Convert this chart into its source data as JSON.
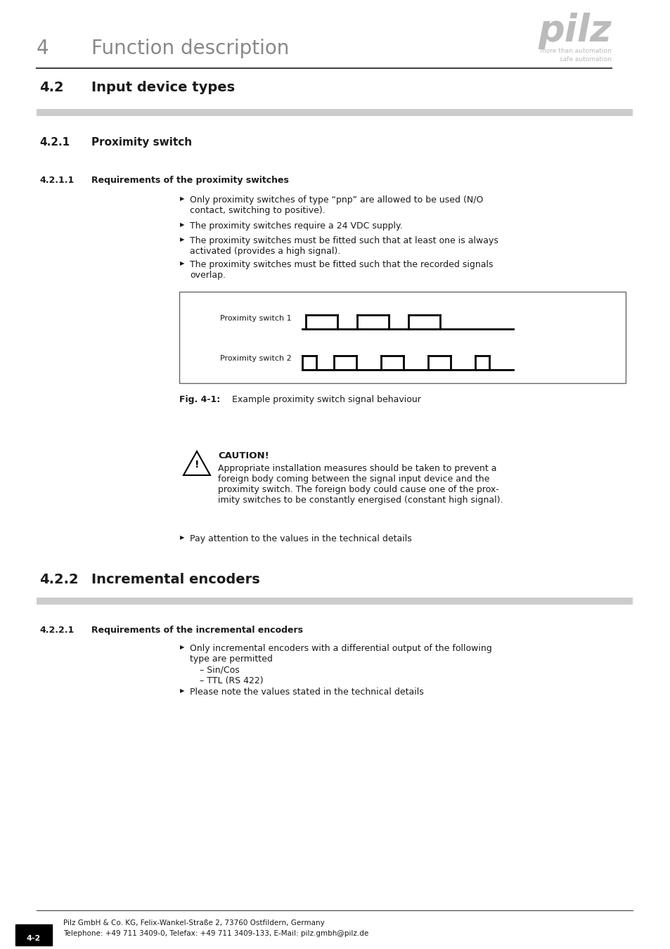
{
  "bg_color": "#ffffff",
  "text_color": "#1a1a1a",
  "gray_color": "#888888",
  "light_gray": "#bbbbbb",
  "dark_gray": "#444444",
  "rule_gray": "#cccccc",
  "header_num": "4",
  "header_title": "Function description",
  "section_num": "4.2",
  "section_title": "Input device types",
  "sub_section_num": "4.2.1",
  "sub_section_title": "Proximity switch",
  "sub_sub_num": "4.2.1.1",
  "sub_sub_title": "Requirements of the proximity switches",
  "bullet1_line1": "Only proximity switches of type “pnp” are allowed to be used (N/O",
  "bullet1_line2": "contact, switching to positive).",
  "bullet2": "The proximity switches require a 24 VDC supply.",
  "bullet3_line1": "The proximity switches must be fitted such that at least one is always",
  "bullet3_line2": "activated (provides a high signal).",
  "bullet4_line1": "The proximity switches must be fitted such that the recorded signals",
  "bullet4_line2": "overlap.",
  "prox1_label": "Proximity switch 1",
  "prox2_label": "Proximity switch 2",
  "fig_label": "Fig. 4-1:",
  "fig_caption": "Example proximity switch signal behaviour",
  "caution_title": "CAUTION!",
  "caution_line1": "Appropriate installation measures should be taken to prevent a",
  "caution_line2": "foreign body coming between the signal input device and the",
  "caution_line3": "proximity switch. The foreign body could cause one of the prox-",
  "caution_line4": "imity switches to be constantly energised (constant high signal).",
  "pay_attention": "Pay attention to the values in the technical details",
  "section2_num": "4.2.2",
  "section2_title": "Incremental encoders",
  "sub2_num": "4.2.2.1",
  "sub2_title": "Requirements of the incremental encoders",
  "enc_bullet1_line1": "Only incremental encoders with a differential output of the following",
  "enc_bullet1_line2": "type are permitted",
  "enc_dash1": "– Sin/Cos",
  "enc_dash2": "– TTL (RS 422)",
  "enc_bullet2": "Please note the values stated in the technical details",
  "footer_page": "4-2",
  "footer_company": "Pilz GmbH & Co. KG, Felix-Wankel-Straße 2, 73760 Ostfildern, Germany",
  "footer_contact": "Telephone: +49 711 3409-0, Telefax: +49 711 3409-133, E-Mail: pilz.gmbh@pilz.de",
  "logo_text": "pilz",
  "logo_sub1": "more than automation",
  "logo_sub2": "safe automation"
}
